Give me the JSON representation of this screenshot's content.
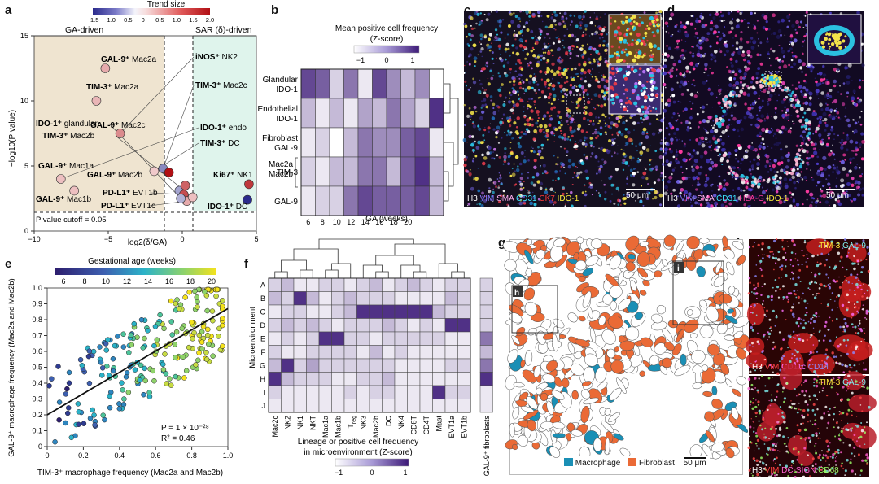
{
  "panels": {
    "a": "a",
    "b": "b",
    "c": "c",
    "d": "d",
    "e": "e",
    "f": "f",
    "g": "g",
    "h": "h",
    "i": "i"
  },
  "colors": {
    "tan": "#efe4d0",
    "mint": "#dff4ec",
    "heat_hi": "#3d1a78",
    "heat_lo": "#ffffff",
    "macrophage": "#1a8fb5",
    "fibroblast": "#ea6a36"
  },
  "panel_a": {
    "trend_title": "Trend size",
    "trend_ticks": [
      "−1.5",
      "−1.0",
      "−0.5",
      "0",
      "0.5",
      "1.0",
      "1.5",
      "2.0"
    ],
    "ga_driven": "GA-driven",
    "sar_driven": "SAR (δ)-driven",
    "ylabel": "−log10(P value)",
    "xlabel": "log2(δ/GA)",
    "cutoff": "P value cutoff = 0.05",
    "xticks": [
      "−10",
      "−5",
      "0",
      "5"
    ],
    "yticks": [
      "0",
      "5",
      "10",
      "15"
    ],
    "labels": [
      {
        "b": "GAL-9⁺",
        "t": " Mac2a"
      },
      {
        "b": "TIM-3⁺",
        "t": " Mac2a"
      },
      {
        "b": "GAL-9⁺",
        "t": " Mac2c"
      },
      {
        "b": "IDO-1⁺",
        "t": " glandular"
      },
      {
        "b": "TIM-3⁺",
        "t": " Mac2b"
      },
      {
        "b": "GAL-9⁺",
        "t": " Mac1a"
      },
      {
        "b": "GAL-9⁺",
        "t": " Mac2b"
      },
      {
        "b": "GAL-9⁺",
        "t": " Mac1b"
      },
      {
        "b": "PD-L1⁺",
        "t": " EVT1b"
      },
      {
        "b": "PD-L1⁺",
        "t": " EVT1c"
      },
      {
        "b": "iNOS⁺",
        "t": " NK2"
      },
      {
        "b": "TIM-3⁺",
        "t": " Mac2c"
      },
      {
        "b": "IDO-1⁺",
        "t": " endo"
      },
      {
        "b": "TIM-3⁺",
        "t": " DC"
      },
      {
        "b": "Ki67⁺",
        "t": " NK1"
      },
      {
        "b": "IDO-1⁺",
        "t": " DC"
      }
    ]
  },
  "panel_b": {
    "title": "Mean positive cell frequency",
    "subtitle": "(Z-score)",
    "scale_ticks": [
      "−1",
      "0",
      "1"
    ],
    "rows": [
      "Glandular IDO-1",
      "Endothelial IDO-1",
      "Fibroblast GAL-9",
      "TIM-3",
      "GAL-9"
    ],
    "row_lines": [
      [
        "Glandular",
        "IDO-1"
      ],
      [
        "Endothelial",
        "IDO-1"
      ],
      [
        "Fibroblast",
        "GAL-9"
      ],
      [
        "TIM-3"
      ],
      [
        "GAL-9"
      ]
    ],
    "group_label": [
      "Mac2a",
      "Mac2b"
    ],
    "xticks": [
      "6",
      "8",
      "10",
      "12",
      "14",
      "16",
      "18",
      "20"
    ],
    "xlabel": "GA (weeks)",
    "matrix": [
      [
        0.8,
        0.7,
        0.2,
        0.6,
        0.1,
        0.8,
        0.5,
        0.3,
        0.5,
        0.0
      ],
      [
        0.3,
        0.1,
        0.3,
        0.1,
        0.4,
        0.3,
        0.6,
        0.4,
        0.2,
        0.9
      ],
      [
        0.1,
        0.2,
        0.0,
        0.3,
        0.6,
        0.5,
        0.5,
        0.7,
        0.8,
        0.1
      ],
      [
        0.2,
        0.1,
        0.3,
        0.3,
        0.6,
        0.6,
        0.3,
        0.7,
        0.9,
        0.3
      ],
      [
        0.1,
        0.2,
        0.2,
        0.6,
        0.8,
        0.7,
        0.7,
        0.7,
        0.8,
        0.3
      ]
    ]
  },
  "panel_c": {
    "scale": "50 μm",
    "legend": [
      {
        "t": "H3",
        "c": "#ffffff"
      },
      {
        "t": " VIM",
        "c": "#8c7cff"
      },
      {
        "t": " SMA",
        "c": "#ffb0f0"
      },
      {
        "t": " CD31",
        "c": "#3ee8ff"
      },
      {
        "t": " CK7",
        "c": "#ff3a3a"
      },
      {
        "t": " IDO-1",
        "c": "#ffef3a"
      }
    ]
  },
  "panel_d": {
    "scale": "50 μm",
    "legend": [
      {
        "t": "H3",
        "c": "#ffffff"
      },
      {
        "t": " VIM",
        "c": "#8c7cff"
      },
      {
        "t": " SMA",
        "c": "#ffb0f0"
      },
      {
        "t": " CD31",
        "c": "#3ee8ff"
      },
      {
        "t": " HLA-G",
        "c": "#ff3aa0"
      },
      {
        "t": " IDO-1",
        "c": "#ffef3a"
      }
    ]
  },
  "panel_e": {
    "cbar_title": "Gestational age (weeks)",
    "cbar_ticks": [
      "6",
      "8",
      "10",
      "12",
      "14",
      "16",
      "18",
      "20"
    ],
    "ylabel": "GAL-9⁺ macrophage frequency (Mac2a and Mac2b)",
    "xlabel": "TIM-3⁺ macrophage frequency (Mac2a and Mac2b)",
    "pval": "P = 1 × 10⁻²⁸",
    "r2": "R² = 0.46",
    "xticks": [
      "0",
      "0.2",
      "0.4",
      "0.6",
      "0.8",
      "1.0"
    ],
    "yticks": [
      "0",
      "0.1",
      "0.2",
      "0.3",
      "0.4",
      "0.5",
      "0.6",
      "0.7",
      "0.8",
      "0.9",
      "1.0"
    ]
  },
  "chart_data": [
    {
      "type": "scatter",
      "title": "",
      "xlabel": "log2(δ/GA)",
      "ylabel": "−log10(P value)",
      "xlim": [
        -10,
        5
      ],
      "ylim": [
        0,
        15
      ],
      "points": [
        {
          "x": -5.2,
          "y": 12.5,
          "trend": 0.5
        },
        {
          "x": -5.8,
          "y": 10.0,
          "trend": 0.4
        },
        {
          "x": -4.2,
          "y": 7.5,
          "trend": 0.8
        },
        {
          "x": -1.3,
          "y": 4.8,
          "trend": -0.8
        },
        {
          "x": -0.9,
          "y": 4.5,
          "trend": 2.0
        },
        {
          "x": -8.2,
          "y": 4.0,
          "trend": 0.3
        },
        {
          "x": -1.9,
          "y": 4.6,
          "trend": 0.2
        },
        {
          "x": -7.3,
          "y": 3.1,
          "trend": 0.3
        },
        {
          "x": -0.2,
          "y": 3.1,
          "trend": -0.6
        },
        {
          "x": 0.2,
          "y": 3.5,
          "trend": 1.2
        },
        {
          "x": 0.1,
          "y": 2.8,
          "trend": 1.4
        },
        {
          "x": 0.3,
          "y": 2.3,
          "trend": 0.5
        },
        {
          "x": -0.1,
          "y": 2.5,
          "trend": -0.5
        },
        {
          "x": 0.7,
          "y": 2.6,
          "trend": 0.3
        },
        {
          "x": 4.5,
          "y": 3.6,
          "trend": 1.6
        },
        {
          "x": 4.4,
          "y": 2.4,
          "trend": -1.5
        }
      ],
      "cutoff_y": 1.3
    },
    {
      "type": "heatmap",
      "title": "Mean positive cell frequency (Z-score)",
      "xlabel": "GA (weeks)",
      "categories": [
        "6",
        "8",
        "10",
        "12",
        "14",
        "16",
        "18",
        "20"
      ]
    },
    {
      "type": "scatter",
      "title": "",
      "xlabel": "TIM-3⁺ macrophage frequency (Mac2a and Mac2b)",
      "ylabel": "GAL-9⁺ macrophage frequency (Mac2a and Mac2b)",
      "xlim": [
        0,
        1
      ],
      "ylim": [
        0,
        1
      ],
      "fit": {
        "slope": 0.67,
        "intercept": 0.2
      },
      "pval": "1 × 10⁻²⁸",
      "r2": 0.46
    },
    {
      "type": "heatmap",
      "title": "Lineage or positive cell frequency in microenvironment (Z-score)",
      "ylabel": "Microenvironment",
      "rows": [
        "A",
        "B",
        "C",
        "D",
        "E",
        "F",
        "G",
        "H",
        "I",
        "J"
      ],
      "columns": [
        "Mac2c",
        "NK2",
        "NK1",
        "NKT",
        "Mac1a",
        "Mac1b",
        "Treg",
        "NK3",
        "Mac2b",
        "DC",
        "NK4",
        "CD8T",
        "CD4T",
        "Mast",
        "EVT1a",
        "EVT1b"
      ],
      "extra_column": "GAL-9⁺ fibroblasts"
    }
  ],
  "panel_f": {
    "ylabel": "Microenvironment",
    "rows": [
      "A",
      "B",
      "C",
      "D",
      "E",
      "F",
      "G",
      "H",
      "I",
      "J"
    ],
    "cols": [
      "Mac2c",
      "NK2",
      "NK1",
      "NKT",
      "Mac1a",
      "Mac1b",
      "Treg",
      "NK3",
      "Mac2b",
      "DC",
      "NK4",
      "CD8T",
      "CD4T",
      "Mast",
      "EVT1a",
      "EVT1b"
    ],
    "treg_main": "T",
    "treg_sub": "reg",
    "extra_col": "GAL-9⁺ fibroblasts",
    "xlabel1": "Lineage or positive cell frequency",
    "xlabel2": "in microenvironment (Z-score)",
    "scale_ticks": [
      "−1",
      "0",
      "1"
    ]
  },
  "panel_g": {
    "legend_mac": "Macrophage",
    "legend_fib": "Fibroblast",
    "scale": "50 μm",
    "inset_h": "h",
    "inset_i": "i"
  },
  "panel_h": {
    "top": [
      {
        "t": "TIM-3",
        "c": "#ffe83a"
      },
      {
        "t": " GAL-9",
        "c": "#7ef0f0"
      }
    ],
    "bottom": [
      {
        "t": "H3",
        "c": "#ffffff"
      },
      {
        "t": " VIM",
        "c": "#ff4040"
      },
      {
        "t": " CD11c",
        "c": "#ff70ff"
      },
      {
        "t": " CD14",
        "c": "#8c8cff"
      }
    ]
  },
  "panel_i": {
    "top": [
      {
        "t": "TIM-3",
        "c": "#ffe83a"
      },
      {
        "t": " GAL-9",
        "c": "#7ef0f0"
      }
    ],
    "bottom": [
      {
        "t": "H3",
        "c": "#ffffff"
      },
      {
        "t": " VIM",
        "c": "#ff4040"
      },
      {
        "t": " DC-SIGN",
        "c": "#ff60d0"
      },
      {
        "t": " CD68",
        "c": "#9cff6a"
      }
    ]
  }
}
